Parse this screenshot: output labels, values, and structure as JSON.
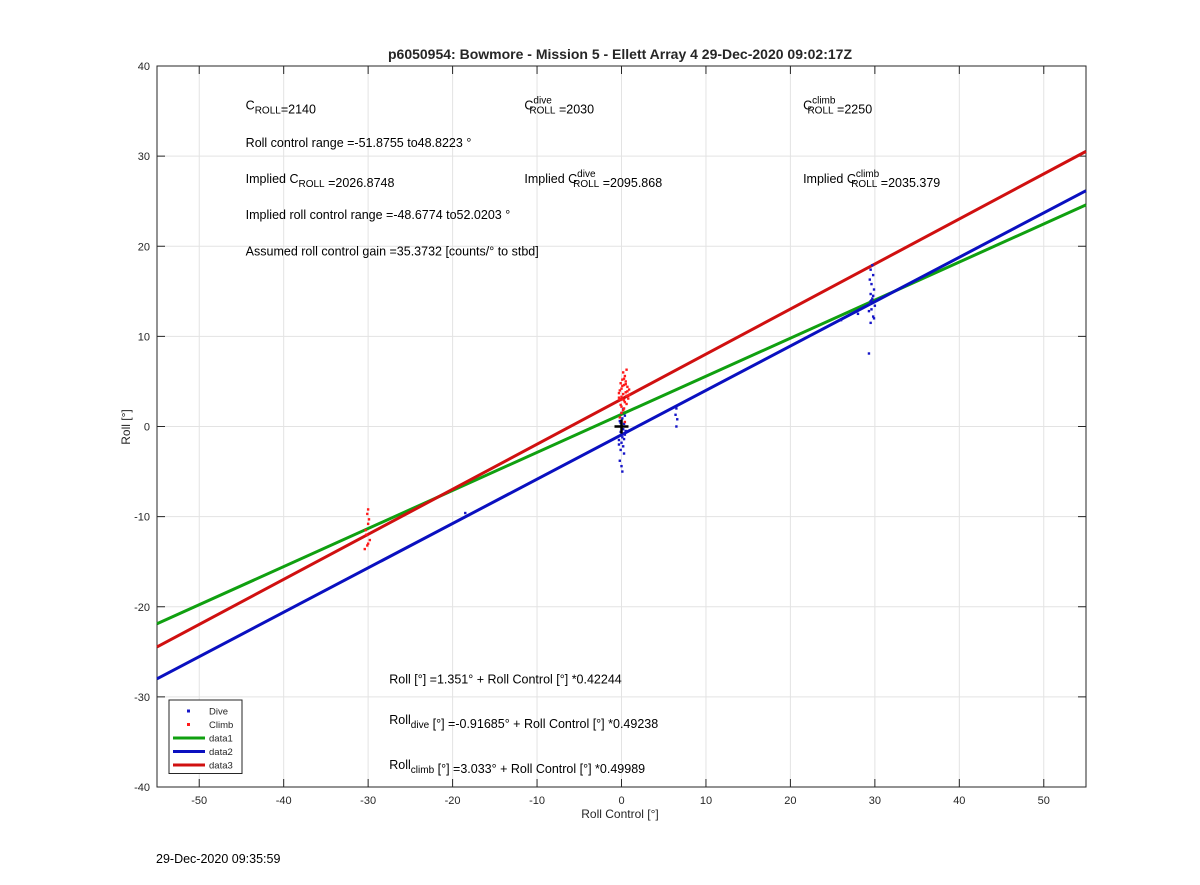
{
  "footer_timestamp": "29-Dec-2020 09:35:59",
  "chart_data": {
    "type": "scatter",
    "title": "p6050954: Bowmore - Mission 5 - Ellett Array 4 29-Dec-2020 09:02:17Z",
    "xlabel": "Roll Control [°]",
    "ylabel": "Roll [°]",
    "xlim": [
      -55,
      55
    ],
    "ylim": [
      -40,
      40
    ],
    "xticks": [
      -50,
      -40,
      -30,
      -20,
      -10,
      0,
      10,
      20,
      30,
      40,
      50
    ],
    "yticks": [
      -40,
      -30,
      -20,
      -10,
      0,
      10,
      20,
      30,
      40
    ],
    "grid": true,
    "legend_position": "bottom-left",
    "colors": {
      "dive": "#1515c8",
      "climb": "#ff1a1a",
      "data1": "#10a010",
      "data2": "#0a10c0",
      "data3": "#d01010",
      "marker": "#000000"
    },
    "legend": [
      {
        "label": "Dive",
        "kind": "point",
        "color": "#1515c8"
      },
      {
        "label": "Climb",
        "kind": "point",
        "color": "#ff1a1a"
      },
      {
        "label": "data1",
        "kind": "line",
        "color": "#10a010"
      },
      {
        "label": "data2",
        "kind": "line",
        "color": "#0a10c0"
      },
      {
        "label": "data3",
        "kind": "line",
        "color": "#d01010"
      }
    ],
    "lines": [
      {
        "name": "data1",
        "intercept": 1.351,
        "slope": 0.42244,
        "color": "#10a010"
      },
      {
        "name": "data2",
        "intercept": -0.91685,
        "slope": 0.49238,
        "color": "#0a10c0"
      },
      {
        "name": "data3",
        "intercept": 3.033,
        "slope": 0.49989,
        "color": "#d01010"
      }
    ],
    "series": [
      {
        "name": "Dive",
        "color": "#1515c8",
        "points": [
          [
            0.1,
            -5.0
          ],
          [
            0.0,
            -4.4
          ],
          [
            -0.2,
            -3.8
          ],
          [
            0.3,
            -3.0
          ],
          [
            -0.1,
            -2.6
          ],
          [
            0.2,
            -2.2
          ],
          [
            0.0,
            -1.8
          ],
          [
            -0.3,
            -1.5
          ],
          [
            0.1,
            -1.2
          ],
          [
            0.4,
            -0.9
          ],
          [
            -0.1,
            -0.6
          ],
          [
            0.2,
            -0.3
          ],
          [
            0.0,
            0.0
          ],
          [
            0.3,
            0.3
          ],
          [
            -0.2,
            0.6
          ],
          [
            0.1,
            0.9
          ],
          [
            0.4,
            1.2
          ],
          [
            0.0,
            1.5
          ],
          [
            0.2,
            1.9
          ],
          [
            -0.1,
            0.4
          ],
          [
            0.5,
            -0.5
          ],
          [
            0.3,
            -1.4
          ],
          [
            -0.3,
            -2.0
          ],
          [
            0.2,
            -0.8
          ],
          [
            6.5,
            0.0
          ],
          [
            6.6,
            0.8
          ],
          [
            6.4,
            1.3
          ],
          [
            6.5,
            2.0
          ],
          [
            -18.5,
            -9.6
          ],
          [
            26.0,
            11.8
          ],
          [
            28.0,
            12.5
          ],
          [
            29.3,
            8.1
          ],
          [
            29.5,
            11.5
          ],
          [
            29.8,
            12.2
          ],
          [
            29.6,
            13.0
          ],
          [
            29.4,
            13.6
          ],
          [
            29.7,
            14.2
          ],
          [
            29.5,
            14.7
          ],
          [
            29.9,
            15.2
          ],
          [
            29.6,
            15.8
          ],
          [
            29.4,
            16.3
          ],
          [
            29.8,
            16.8
          ],
          [
            29.5,
            17.4
          ],
          [
            29.7,
            17.9
          ],
          [
            29.3,
            12.8
          ],
          [
            30.0,
            13.4
          ],
          [
            29.6,
            14.0
          ],
          [
            29.9,
            12.0
          ],
          [
            29.5,
            13.9
          ],
          [
            29.8,
            14.5
          ]
        ]
      },
      {
        "name": "Climb",
        "color": "#ff1a1a",
        "points": [
          [
            -30.0,
            -9.2
          ],
          [
            -30.1,
            -9.7
          ],
          [
            -29.9,
            -10.3
          ],
          [
            -30.0,
            -10.8
          ],
          [
            -30.3,
            -11.5
          ],
          [
            -30.2,
            -12.0
          ],
          [
            -29.8,
            -12.6
          ],
          [
            -30.0,
            -13.0
          ],
          [
            -30.4,
            -13.6
          ],
          [
            -30.1,
            -13.2
          ],
          [
            -0.2,
            1.0
          ],
          [
            0.0,
            1.5
          ],
          [
            0.3,
            2.0
          ],
          [
            -0.1,
            2.4
          ],
          [
            0.4,
            2.7
          ],
          [
            0.1,
            3.0
          ],
          [
            -0.3,
            3.2
          ],
          [
            0.6,
            3.4
          ],
          [
            0.2,
            3.6
          ],
          [
            0.5,
            3.8
          ],
          [
            -0.2,
            4.0
          ],
          [
            0.0,
            4.2
          ],
          [
            0.7,
            4.4
          ],
          [
            0.3,
            4.6
          ],
          [
            -0.1,
            4.8
          ],
          [
            0.5,
            5.0
          ],
          [
            0.1,
            5.2
          ],
          [
            0.4,
            5.6
          ],
          [
            0.2,
            6.0
          ],
          [
            0.6,
            6.3
          ],
          [
            0.0,
            3.3
          ],
          [
            0.3,
            2.9
          ],
          [
            0.8,
            3.1
          ],
          [
            -0.3,
            3.7
          ],
          [
            0.9,
            4.1
          ],
          [
            0.1,
            4.5
          ],
          [
            0.6,
            2.5
          ],
          [
            0.2,
            1.8
          ],
          [
            0.4,
            0.5
          ],
          [
            0.0,
            2.2
          ],
          [
            0.7,
            3.9
          ],
          [
            0.3,
            5.3
          ],
          [
            -0.2,
            3.0
          ],
          [
            0.5,
            4.7
          ],
          [
            0.9,
            3.5
          ]
        ]
      }
    ],
    "marker": {
      "x": 0.0,
      "y": 0.0,
      "symbol": "+"
    },
    "annotations": [
      {
        "id": "croll",
        "parts": [
          [
            "C",
            ""
          ],
          [
            "ROLL",
            "sub"
          ],
          [
            "=2140",
            ""
          ]
        ],
        "x": -44.5,
        "y": 35.2
      },
      {
        "id": "croll-dive",
        "parts": [
          [
            "C",
            ""
          ],
          [
            "dive|ROLL",
            "subsup"
          ],
          [
            " =2030",
            ""
          ]
        ],
        "x": -11.5,
        "y": 35.2
      },
      {
        "id": "croll-climb",
        "parts": [
          [
            "C",
            ""
          ],
          [
            "climb|ROLL",
            "subsup"
          ],
          [
            " =2250",
            ""
          ]
        ],
        "x": 21.5,
        "y": 35.2
      },
      {
        "id": "roll-range",
        "parts": [
          [
            "Roll control range =-51.8755 to48.8223 °",
            ""
          ]
        ],
        "x": -44.5,
        "y": 31.0
      },
      {
        "id": "implied-croll",
        "parts": [
          [
            "Implied C",
            ""
          ],
          [
            "ROLL",
            "sub"
          ],
          [
            " =2026.8748",
            ""
          ]
        ],
        "x": -44.5,
        "y": 27.0
      },
      {
        "id": "implied-croll-dive",
        "parts": [
          [
            "Implied C",
            ""
          ],
          [
            "dive|ROLL",
            "subsup"
          ],
          [
            " =2095.868",
            ""
          ]
        ],
        "x": -11.5,
        "y": 27.0
      },
      {
        "id": "implied-croll-climb",
        "parts": [
          [
            "Implied C",
            ""
          ],
          [
            "climb|ROLL",
            "subsup"
          ],
          [
            " =2035.379",
            ""
          ]
        ],
        "x": 21.5,
        "y": 27.0
      },
      {
        "id": "implied-range",
        "parts": [
          [
            "Implied roll control range =-48.6774 to52.0203 °",
            ""
          ]
        ],
        "x": -44.5,
        "y": 23.0
      },
      {
        "id": "gain",
        "parts": [
          [
            "Assumed roll control gain =35.3732 [counts/° to stbd]",
            ""
          ]
        ],
        "x": -44.5,
        "y": 19.0
      },
      {
        "id": "fit-all",
        "parts": [
          [
            "Roll [°] =1.351° + Roll Control [°] *0.42244",
            ""
          ]
        ],
        "x": -27.5,
        "y": -28.5
      },
      {
        "id": "fit-dive",
        "parts": [
          [
            "Roll",
            ""
          ],
          [
            "dive",
            "sub"
          ],
          [
            " [°] =-0.91685° + Roll Control [°] *0.49238",
            ""
          ]
        ],
        "x": -27.5,
        "y": -33.0
      },
      {
        "id": "fit-climb",
        "parts": [
          [
            "Roll",
            ""
          ],
          [
            "climb",
            "sub"
          ],
          [
            " [°] =3.033° + Roll Control [°] *0.49989",
            ""
          ]
        ],
        "x": -27.5,
        "y": -38.0
      }
    ]
  }
}
